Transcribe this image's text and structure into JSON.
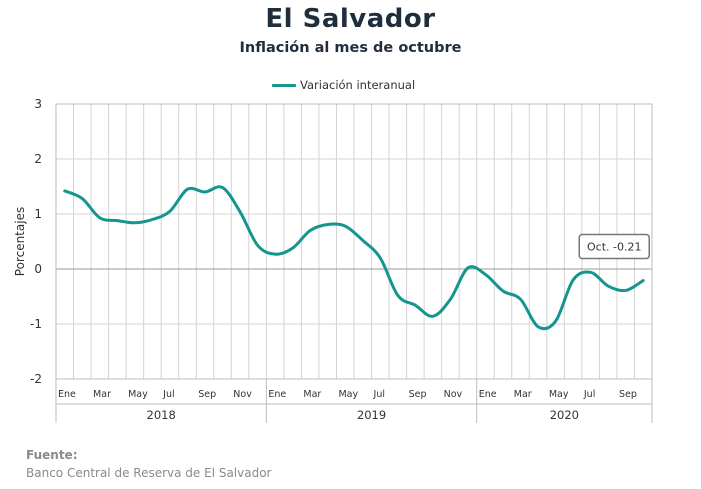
{
  "header": {
    "title": "El Salvador",
    "subtitle": "Inflación al mes de octubre"
  },
  "legend": {
    "label": "Variación interanual",
    "color": "#15958f"
  },
  "source": {
    "label": "Fuente:",
    "text": "Banco Central de Reserva de El Salvador"
  },
  "chart_data": {
    "type": "line",
    "title": "",
    "ylabel": "Porcentajes",
    "xlabel": "",
    "ylim": [
      -2,
      3
    ],
    "yticks": [
      3,
      2,
      1,
      0,
      -1,
      -2
    ],
    "grid": true,
    "legend_position": "top-center",
    "x": [
      "2018-01",
      "2018-02",
      "2018-03",
      "2018-04",
      "2018-05",
      "2018-06",
      "2018-07",
      "2018-08",
      "2018-09",
      "2018-10",
      "2018-11",
      "2018-12",
      "2019-01",
      "2019-02",
      "2019-03",
      "2019-04",
      "2019-05",
      "2019-06",
      "2019-07",
      "2019-08",
      "2019-09",
      "2019-10",
      "2019-11",
      "2019-12",
      "2020-01",
      "2020-02",
      "2020-03",
      "2020-04",
      "2020-05",
      "2020-06",
      "2020-07",
      "2020-08",
      "2020-09",
      "2020-10"
    ],
    "month_labels": [
      "Ene",
      "",
      "Mar",
      "",
      "May",
      "",
      "Jul",
      "",
      "Sep",
      "",
      "Nov",
      "",
      "Ene",
      "",
      "Mar",
      "",
      "May",
      "",
      "Jul",
      "",
      "Sep",
      "",
      "Nov",
      "",
      "Ene",
      "",
      "Mar",
      "",
      "May",
      "",
      "Jul",
      "",
      "Sep",
      ""
    ],
    "year_groups": [
      {
        "label": "2018",
        "months": 12
      },
      {
        "label": "2019",
        "months": 12
      },
      {
        "label": "2020",
        "months": 10
      }
    ],
    "series": [
      {
        "name": "Variación interanual",
        "color": "#15958f",
        "values": [
          1.42,
          1.28,
          0.93,
          0.88,
          0.84,
          0.9,
          1.05,
          1.45,
          1.4,
          1.48,
          1.04,
          0.43,
          0.27,
          0.38,
          0.7,
          0.81,
          0.78,
          0.52,
          0.2,
          -0.48,
          -0.66,
          -0.86,
          -0.55,
          0.02,
          -0.1,
          -0.4,
          -0.55,
          -1.05,
          -0.95,
          -0.2,
          -0.06,
          -0.31,
          -0.39,
          -0.21
        ]
      }
    ],
    "annotation": {
      "text": "Oct. -0.21",
      "index": 33
    }
  }
}
